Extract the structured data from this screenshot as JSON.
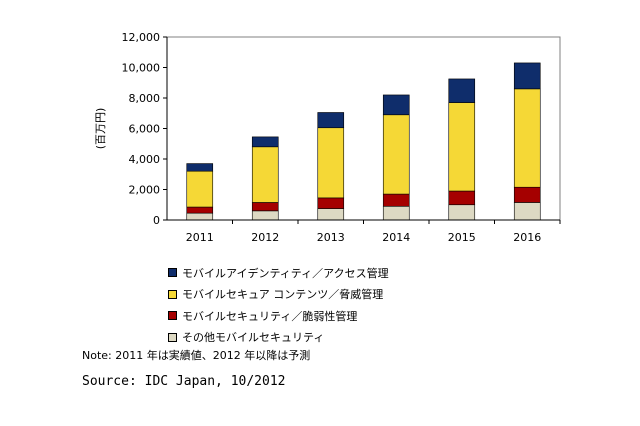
{
  "chart_data": {
    "type": "bar",
    "stacked": true,
    "categories": [
      "2011",
      "2012",
      "2013",
      "2014",
      "2015",
      "2016"
    ],
    "series": [
      {
        "name": "その他モバイルセキュリティ",
        "color": "#ddd9c3",
        "values": [
          450,
          600,
          750,
          900,
          1000,
          1150
        ]
      },
      {
        "name": "モバイルセキュリティ／脆弱性管理",
        "color": "#a50000",
        "values": [
          400,
          550,
          700,
          800,
          900,
          1000
        ]
      },
      {
        "name": "モバイルセキュア コンテンツ／脅威管理",
        "color": "#f5d836",
        "values": [
          2350,
          3650,
          4600,
          5200,
          5800,
          6450
        ]
      },
      {
        "name": "モバイルアイデンティティ／アクセス管理",
        "color": "#0f2d6b",
        "values": [
          500,
          650,
          1000,
          1300,
          1550,
          1700
        ]
      }
    ],
    "ylabel": "(百万円)",
    "ylim": [
      0,
      12000
    ],
    "yticks": [
      "0",
      "2,000",
      "4,000",
      "6,000",
      "8,000",
      "10,000",
      "12,000"
    ],
    "legend_order": [
      3,
      2,
      1,
      0
    ],
    "legend_labels": [
      "モバイルアイデンティティ／アクセス管理",
      "モバイルセキュア コンテンツ／脅威管理",
      "モバイルセキュリティ／脆弱性管理",
      "その他モバイルセキュリティ"
    ]
  },
  "note": "Note: 2011 年は実績値、2012 年以降は予測",
  "source": "Source: IDC Japan, 10/2012"
}
